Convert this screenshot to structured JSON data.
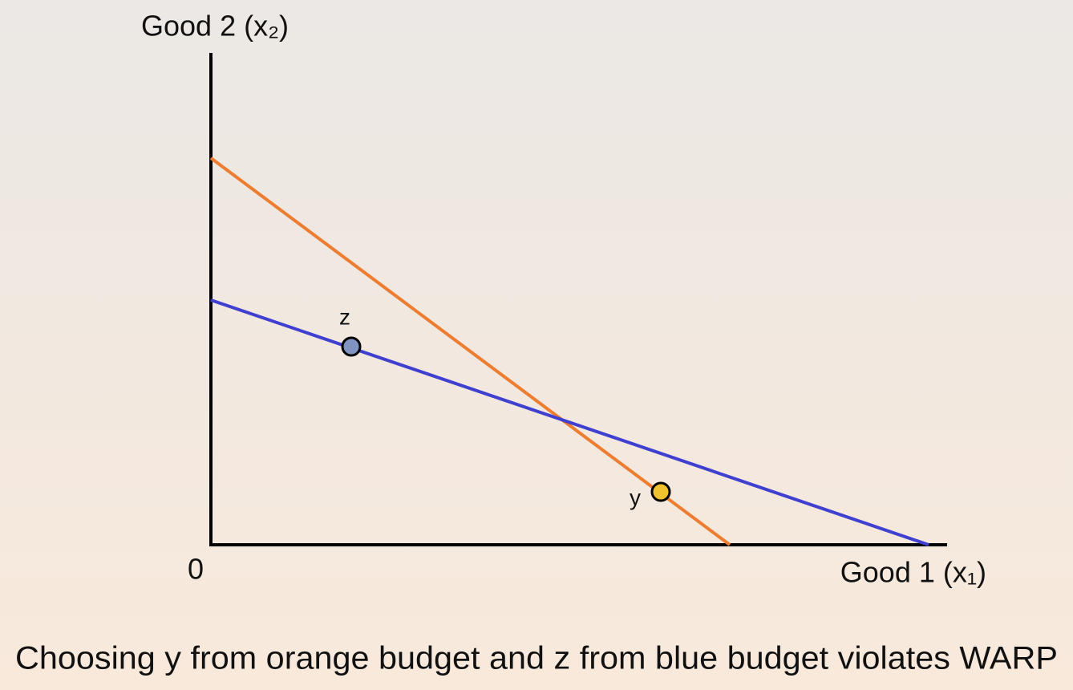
{
  "axes": {
    "y_label": "Good 2 (x₂)",
    "x_label": "Good 1 (x₁)",
    "origin": "0"
  },
  "points": [
    {
      "label": "z"
    },
    {
      "label": "y"
    }
  ],
  "caption": "Choosing y from orange budget and z from blue budget violates WARP"
}
